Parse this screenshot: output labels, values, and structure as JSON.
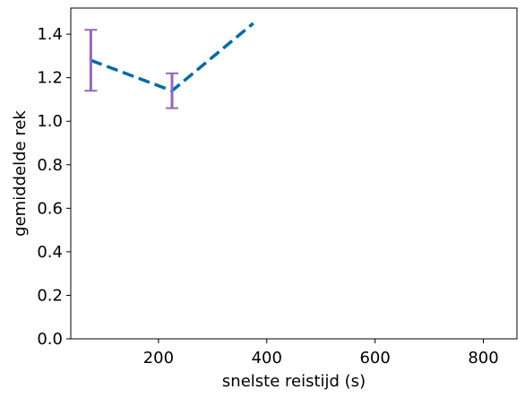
{
  "chart_data": {
    "type": "line",
    "title": "",
    "xlabel": "snelste reistijd (s)",
    "ylabel": "gemiddelde rek",
    "xlim": [
      38,
      862
    ],
    "ylim": [
      0,
      1.52
    ],
    "xticks": [
      200,
      400,
      600,
      800
    ],
    "yticks": [
      0.0,
      0.2,
      0.4,
      0.6,
      0.8,
      1.0,
      1.2,
      1.4
    ],
    "ytick_labels": [
      "0.0",
      "0.2",
      "0.4",
      "0.6",
      "0.8",
      "1.0",
      "1.2",
      "1.4"
    ],
    "grid": false,
    "series": [
      {
        "name": "",
        "color": "#006ba4",
        "line_style": "dashed",
        "x": [
          75,
          225,
          375
        ],
        "y": [
          1.28,
          1.14,
          1.45
        ]
      }
    ],
    "error_bars": {
      "color": "#9467bd",
      "points": [
        {
          "x": 75,
          "low": 1.14,
          "high": 1.42
        },
        {
          "x": 225,
          "low": 1.06,
          "high": 1.22
        }
      ]
    }
  }
}
